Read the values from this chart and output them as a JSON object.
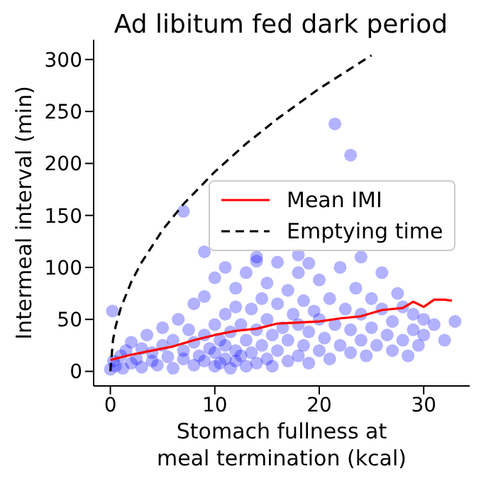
{
  "chart_data": {
    "type": "scatter",
    "title": "Ad libitum fed dark period",
    "xlabel": "Stomach fullness at\nmeal termination (kcal)",
    "ylabel": "Intermeal interval (min)",
    "xlim": [
      -1.6,
      34.4
    ],
    "ylim": [
      -14,
      319
    ],
    "xticks": [
      0,
      10,
      20,
      30
    ],
    "yticks": [
      0,
      50,
      100,
      150,
      200,
      250,
      300
    ],
    "grid": false,
    "legend": "right",
    "series": [
      {
        "color": "#0000ff",
        "marker": "circle",
        "x": [
          0,
          0.2,
          0.3,
          0.5,
          1,
          1.2,
          1.5,
          2,
          2,
          2.5,
          3,
          3,
          3.5,
          4,
          4,
          4.5,
          5,
          5,
          5.5,
          6,
          6,
          6.5,
          7,
          7,
          7,
          7.5,
          8,
          8,
          8,
          8.5,
          9,
          9,
          9,
          9.5,
          10,
          10,
          10,
          10,
          10.5,
          10.5,
          11,
          11,
          11,
          11,
          11.5,
          11.5,
          12,
          12,
          12,
          12,
          12.5,
          12.5,
          13,
          13,
          13,
          13.5,
          13.5,
          14,
          14,
          14,
          14.5,
          14.5,
          15,
          15,
          15,
          15.5,
          15.5,
          16,
          16,
          16,
          16.5,
          17,
          17,
          17,
          17.5,
          18,
          18,
          18,
          18.5,
          18.5,
          19,
          19,
          19,
          19.5,
          20,
          20,
          20,
          20.5,
          21,
          21,
          21.5,
          21.5,
          22,
          22,
          22.5,
          23,
          23,
          23,
          23.5,
          24,
          24,
          24.5,
          25,
          25,
          25.5,
          26,
          26,
          26.5,
          27,
          27,
          27.5,
          28,
          28,
          28.5,
          29,
          29,
          29.5,
          30,
          30,
          31,
          32,
          33,
          24,
          18,
          14,
          9
        ],
        "values": [
          2,
          58,
          10,
          5,
          15,
          3,
          20,
          8,
          28,
          12,
          4,
          22,
          35,
          10,
          18,
          6,
          25,
          42,
          14,
          3,
          30,
          50,
          154,
          12,
          20,
          40,
          6,
          28,
          65,
          15,
          10,
          35,
          72,
          22,
          5,
          18,
          45,
          90,
          30,
          8,
          12,
          25,
          55,
          100,
          3,
          38,
          10,
          20,
          62,
          80,
          15,
          45,
          5,
          30,
          95,
          18,
          60,
          8,
          40,
          110,
          25,
          70,
          12,
          50,
          85,
          5,
          35,
          20,
          65,
          105,
          42,
          10,
          30,
          78,
          55,
          15,
          45,
          95,
          25,
          68,
          8,
          38,
          104,
          58,
          20,
          50,
          88,
          32,
          12,
          70,
          238,
          45,
          25,
          100,
          60,
          208,
          18,
          40,
          80,
          30,
          55,
          15,
          70,
          42,
          25,
          60,
          95,
          35,
          20,
          48,
          75,
          30,
          62,
          15,
          55,
          40,
          25,
          50,
          35,
          45,
          30,
          48,
          110,
          112,
          106,
          115
        ]
      },
      {
        "type": "line",
        "name": "Mean IMI",
        "color": "#ff0000",
        "line_style": "solid",
        "marker": "none",
        "x": [
          0,
          2,
          4,
          6,
          8,
          10,
          12,
          14,
          16,
          18,
          20,
          22,
          24,
          26,
          28,
          29,
          30,
          31,
          32,
          32.7
        ],
        "values": [
          11,
          16,
          20,
          24,
          30,
          35,
          39,
          41,
          46,
          47,
          48,
          51,
          53,
          59,
          61,
          67,
          62,
          69,
          69,
          68
        ]
      },
      {
        "type": "line",
        "name": "Emptying time",
        "color": "#000000",
        "line_style": "dashed",
        "marker": "none",
        "x": [
          0,
          0.25,
          0.5,
          1,
          2,
          3,
          5,
          7,
          10,
          13,
          16,
          20,
          25
        ],
        "values": [
          0,
          30,
          43,
          61,
          86,
          105,
          136,
          161,
          192,
          219,
          243,
          272,
          304
        ]
      }
    ]
  }
}
